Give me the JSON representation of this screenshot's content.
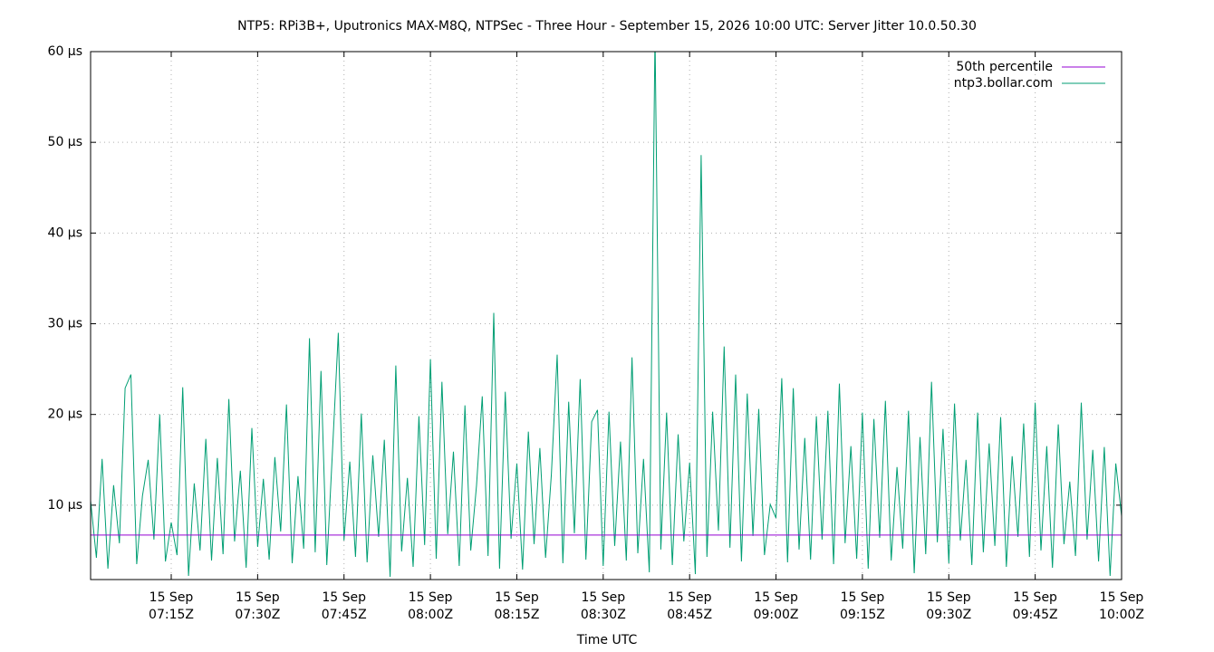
{
  "chart_data": {
    "type": "line",
    "title": "NTP5: RPi3B+, Uputronics MAX-M8Q, NTPSec - Three Hour - September 15, 2026 10:00 UTC: Server Jitter 10.0.50.30",
    "x_label": "Time UTC",
    "x": [
      "07:01",
      "07:02",
      "07:03",
      "07:04",
      "07:05",
      "07:06",
      "07:07",
      "07:08",
      "07:09",
      "07:10",
      "07:11",
      "07:12",
      "07:13",
      "07:14",
      "07:15",
      "07:16",
      "07:17",
      "07:18",
      "07:19",
      "07:20",
      "07:21",
      "07:22",
      "07:23",
      "07:24",
      "07:25",
      "07:26",
      "07:27",
      "07:28",
      "07:29",
      "07:30",
      "07:31",
      "07:32",
      "07:33",
      "07:34",
      "07:35",
      "07:36",
      "07:37",
      "07:38",
      "07:39",
      "07:40",
      "07:41",
      "07:42",
      "07:43",
      "07:44",
      "07:45",
      "07:46",
      "07:47",
      "07:48",
      "07:49",
      "07:50",
      "07:51",
      "07:52",
      "07:53",
      "07:54",
      "07:55",
      "07:56",
      "07:57",
      "07:58",
      "07:59",
      "08:00",
      "08:01",
      "08:02",
      "08:03",
      "08:04",
      "08:05",
      "08:06",
      "08:07",
      "08:08",
      "08:09",
      "08:10",
      "08:11",
      "08:12",
      "08:13",
      "08:14",
      "08:15",
      "08:16",
      "08:17",
      "08:18",
      "08:19",
      "08:20",
      "08:21",
      "08:22",
      "08:23",
      "08:24",
      "08:25",
      "08:26",
      "08:27",
      "08:28",
      "08:29",
      "08:30",
      "08:31",
      "08:32",
      "08:33",
      "08:34",
      "08:35",
      "08:36",
      "08:37",
      "08:38",
      "08:39",
      "08:40",
      "08:41",
      "08:42",
      "08:43",
      "08:44",
      "08:45",
      "08:46",
      "08:47",
      "08:48",
      "08:49",
      "08:50",
      "08:51",
      "08:52",
      "08:53",
      "08:54",
      "08:55",
      "08:56",
      "08:57",
      "08:58",
      "08:59",
      "09:00",
      "09:01",
      "09:02",
      "09:03",
      "09:04",
      "09:05",
      "09:06",
      "09:07",
      "09:08",
      "09:09",
      "09:10",
      "09:11",
      "09:12",
      "09:13",
      "09:14",
      "09:15",
      "09:16",
      "09:17",
      "09:18",
      "09:19",
      "09:20",
      "09:21",
      "09:22",
      "09:23",
      "09:24",
      "09:25",
      "09:26",
      "09:27",
      "09:28",
      "09:29",
      "09:30",
      "09:31",
      "09:32",
      "09:33",
      "09:34",
      "09:35",
      "09:36",
      "09:37",
      "09:38",
      "09:39",
      "09:40",
      "09:41",
      "09:42",
      "09:43",
      "09:44",
      "09:45",
      "09:46",
      "09:47",
      "09:48",
      "09:49",
      "09:50",
      "09:51",
      "09:52",
      "09:53",
      "09:54",
      "09:55",
      "09:56",
      "09:57",
      "09:58",
      "09:59",
      "10:00"
    ],
    "series": [
      {
        "name": "ntp3.bollar.com",
        "color": "#009e73",
        "values": [
          10.5,
          4.2,
          15.1,
          3.0,
          12.2,
          5.8,
          22.9,
          24.4,
          3.5,
          11.0,
          15.0,
          6.2,
          20.0,
          3.8,
          8.1,
          4.5,
          23.0,
          2.2,
          12.4,
          5.0,
          17.3,
          3.9,
          15.2,
          4.6,
          21.7,
          6.0,
          13.8,
          3.1,
          18.5,
          5.4,
          12.9,
          4.0,
          15.3,
          7.1,
          21.1,
          3.6,
          13.2,
          5.2,
          28.4,
          4.8,
          24.8,
          3.4,
          16.0,
          29.0,
          6.1,
          14.8,
          4.3,
          20.1,
          3.7,
          15.5,
          6.5,
          17.2,
          2.1,
          25.4,
          4.9,
          13.0,
          3.2,
          19.8,
          5.6,
          26.1,
          4.1,
          23.6,
          6.8,
          15.9,
          3.3,
          21.0,
          5.0,
          12.2,
          22.0,
          4.4,
          31.2,
          3.0,
          22.5,
          6.3,
          14.6,
          2.9,
          18.1,
          5.7,
          16.3,
          4.2,
          13.4,
          26.6,
          3.6,
          21.4,
          6.9,
          23.9,
          4.0,
          19.2,
          20.5,
          3.3,
          20.3,
          5.5,
          17.0,
          3.9,
          26.3,
          4.7,
          15.1,
          2.6,
          62.0,
          5.1,
          20.2,
          3.4,
          17.8,
          6.0,
          14.7,
          2.4,
          48.6,
          4.3,
          20.3,
          7.2,
          27.5,
          5.3,
          24.4,
          3.8,
          22.3,
          6.6,
          20.6,
          4.5,
          10.1,
          8.6,
          24.0,
          3.7,
          22.9,
          5.1,
          17.4,
          4.0,
          19.8,
          6.2,
          20.4,
          3.5,
          23.4,
          5.8,
          16.5,
          4.1,
          20.2,
          3.0,
          19.5,
          6.4,
          21.5,
          3.9,
          14.2,
          5.2,
          20.4,
          2.5,
          17.5,
          4.6,
          23.6,
          5.9,
          18.4,
          3.6,
          21.2,
          6.1,
          15.0,
          3.4,
          20.2,
          4.8,
          16.8,
          5.5,
          19.7,
          3.2,
          15.4,
          6.5,
          19.0,
          4.3,
          21.3,
          5.0,
          16.5,
          3.1,
          18.9,
          5.7,
          12.6,
          4.4,
          21.3,
          6.2,
          16.1,
          3.8,
          16.4,
          2.2,
          14.6,
          8.8
        ]
      }
    ],
    "percentile": {
      "name": "50th percentile",
      "color": "#9400d3",
      "value": 6.7
    },
    "xlim": [
      "07:01",
      "10:00"
    ],
    "xticks": [
      {
        "value": "07:15",
        "label": [
          "15 Sep",
          "07:15Z"
        ]
      },
      {
        "value": "07:30",
        "label": [
          "15 Sep",
          "07:30Z"
        ]
      },
      {
        "value": "07:45",
        "label": [
          "15 Sep",
          "07:45Z"
        ]
      },
      {
        "value": "08:00",
        "label": [
          "15 Sep",
          "08:00Z"
        ]
      },
      {
        "value": "08:15",
        "label": [
          "15 Sep",
          "08:15Z"
        ]
      },
      {
        "value": "08:30",
        "label": [
          "15 Sep",
          "08:30Z"
        ]
      },
      {
        "value": "08:45",
        "label": [
          "15 Sep",
          "08:45Z"
        ]
      },
      {
        "value": "09:00",
        "label": [
          "15 Sep",
          "09:00Z"
        ]
      },
      {
        "value": "09:15",
        "label": [
          "15 Sep",
          "09:15Z"
        ]
      },
      {
        "value": "09:30",
        "label": [
          "15 Sep",
          "09:30Z"
        ]
      },
      {
        "value": "09:45",
        "label": [
          "15 Sep",
          "09:45Z"
        ]
      },
      {
        "value": "10:00",
        "label": [
          "15 Sep",
          "10:00Z"
        ]
      }
    ],
    "ylim": [
      1.8,
      60
    ],
    "yticks": [
      {
        "value": 10,
        "label": "10 µs"
      },
      {
        "value": 20,
        "label": "20 µs"
      },
      {
        "value": 30,
        "label": "30 µs"
      },
      {
        "value": 40,
        "label": "40 µs"
      },
      {
        "value": 50,
        "label": "50 µs"
      },
      {
        "value": 60,
        "label": "60 µs"
      }
    ],
    "grid": true,
    "legend": "top-right"
  }
}
